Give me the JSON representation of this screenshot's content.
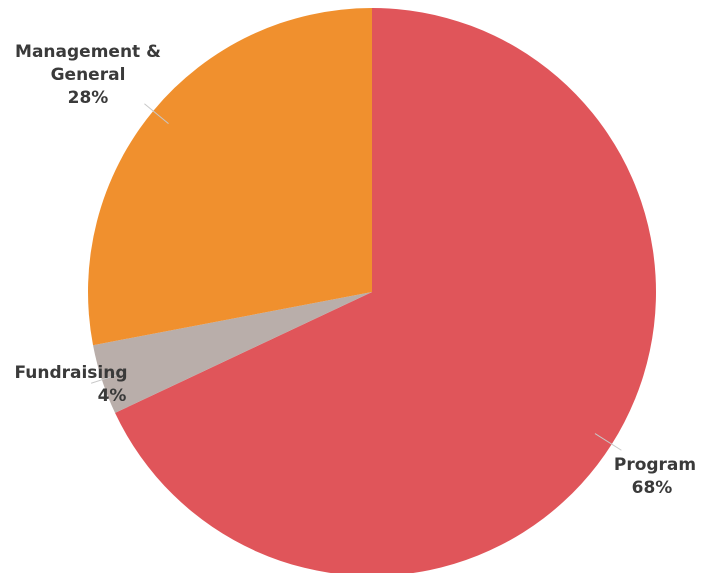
{
  "chart_data": {
    "type": "pie",
    "slices": [
      {
        "label": "Program",
        "value": 68,
        "value_label": "68%",
        "color": "#e0555a"
      },
      {
        "label": "Fundraising",
        "value": 4,
        "value_label": "4%",
        "color": "#b9aeaa"
      },
      {
        "label": "Management &",
        "label_line2": "General",
        "value": 28,
        "value_label": "28%",
        "color": "#f0902e"
      }
    ],
    "start_angle_deg": 0,
    "direction": "clockwise",
    "legend": "none"
  }
}
